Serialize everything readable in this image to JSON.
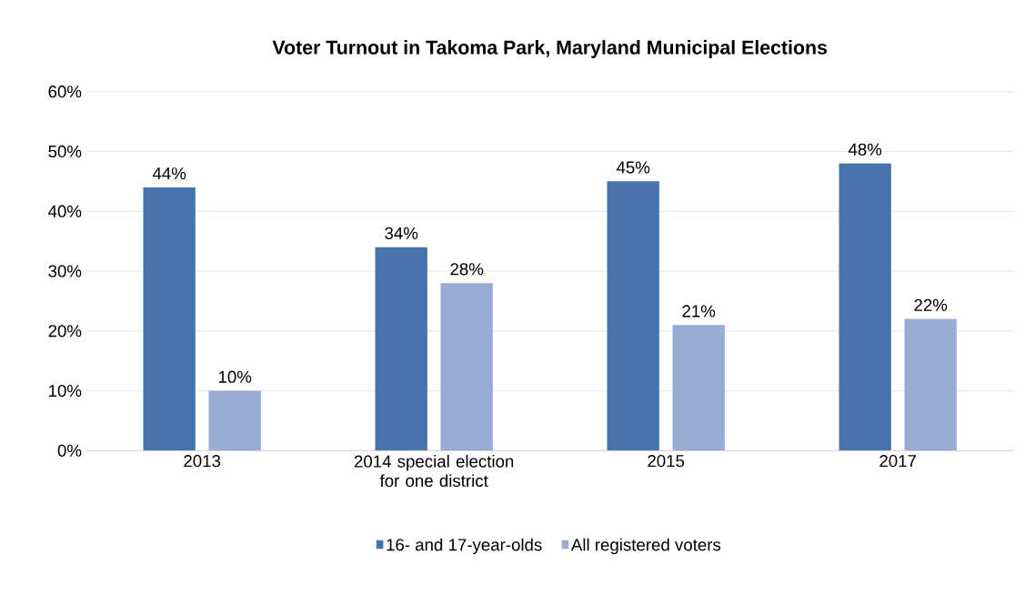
{
  "chart_data": {
    "type": "bar",
    "title": "Voter Turnout  in Takoma Park, Maryland Municipal Elections",
    "categories": [
      "2013",
      "2014 special election for one district",
      "2015",
      "2017"
    ],
    "series": [
      {
        "name": "16- and 17-year-olds",
        "color": "#4674aa",
        "values": [
          44,
          34,
          45,
          48
        ],
        "value_labels": [
          "44%",
          "34%",
          "45%",
          "48%"
        ]
      },
      {
        "name": "All registered voters",
        "color": "#97abd3",
        "values": [
          10,
          28,
          21,
          22
        ],
        "value_labels": [
          "10%",
          "28%",
          "21%",
          "22%"
        ]
      }
    ],
    "ylim": [
      0,
      60
    ],
    "yticks": [
      {
        "value": 0,
        "label": "0%"
      },
      {
        "value": 10,
        "label": "10%"
      },
      {
        "value": 20,
        "label": "20%"
      },
      {
        "value": 30,
        "label": "30%"
      },
      {
        "value": 40,
        "label": "40%"
      },
      {
        "value": 50,
        "label": "50%"
      },
      {
        "value": 60,
        "label": "60%"
      }
    ],
    "grid": "y",
    "legend": "bottom"
  }
}
